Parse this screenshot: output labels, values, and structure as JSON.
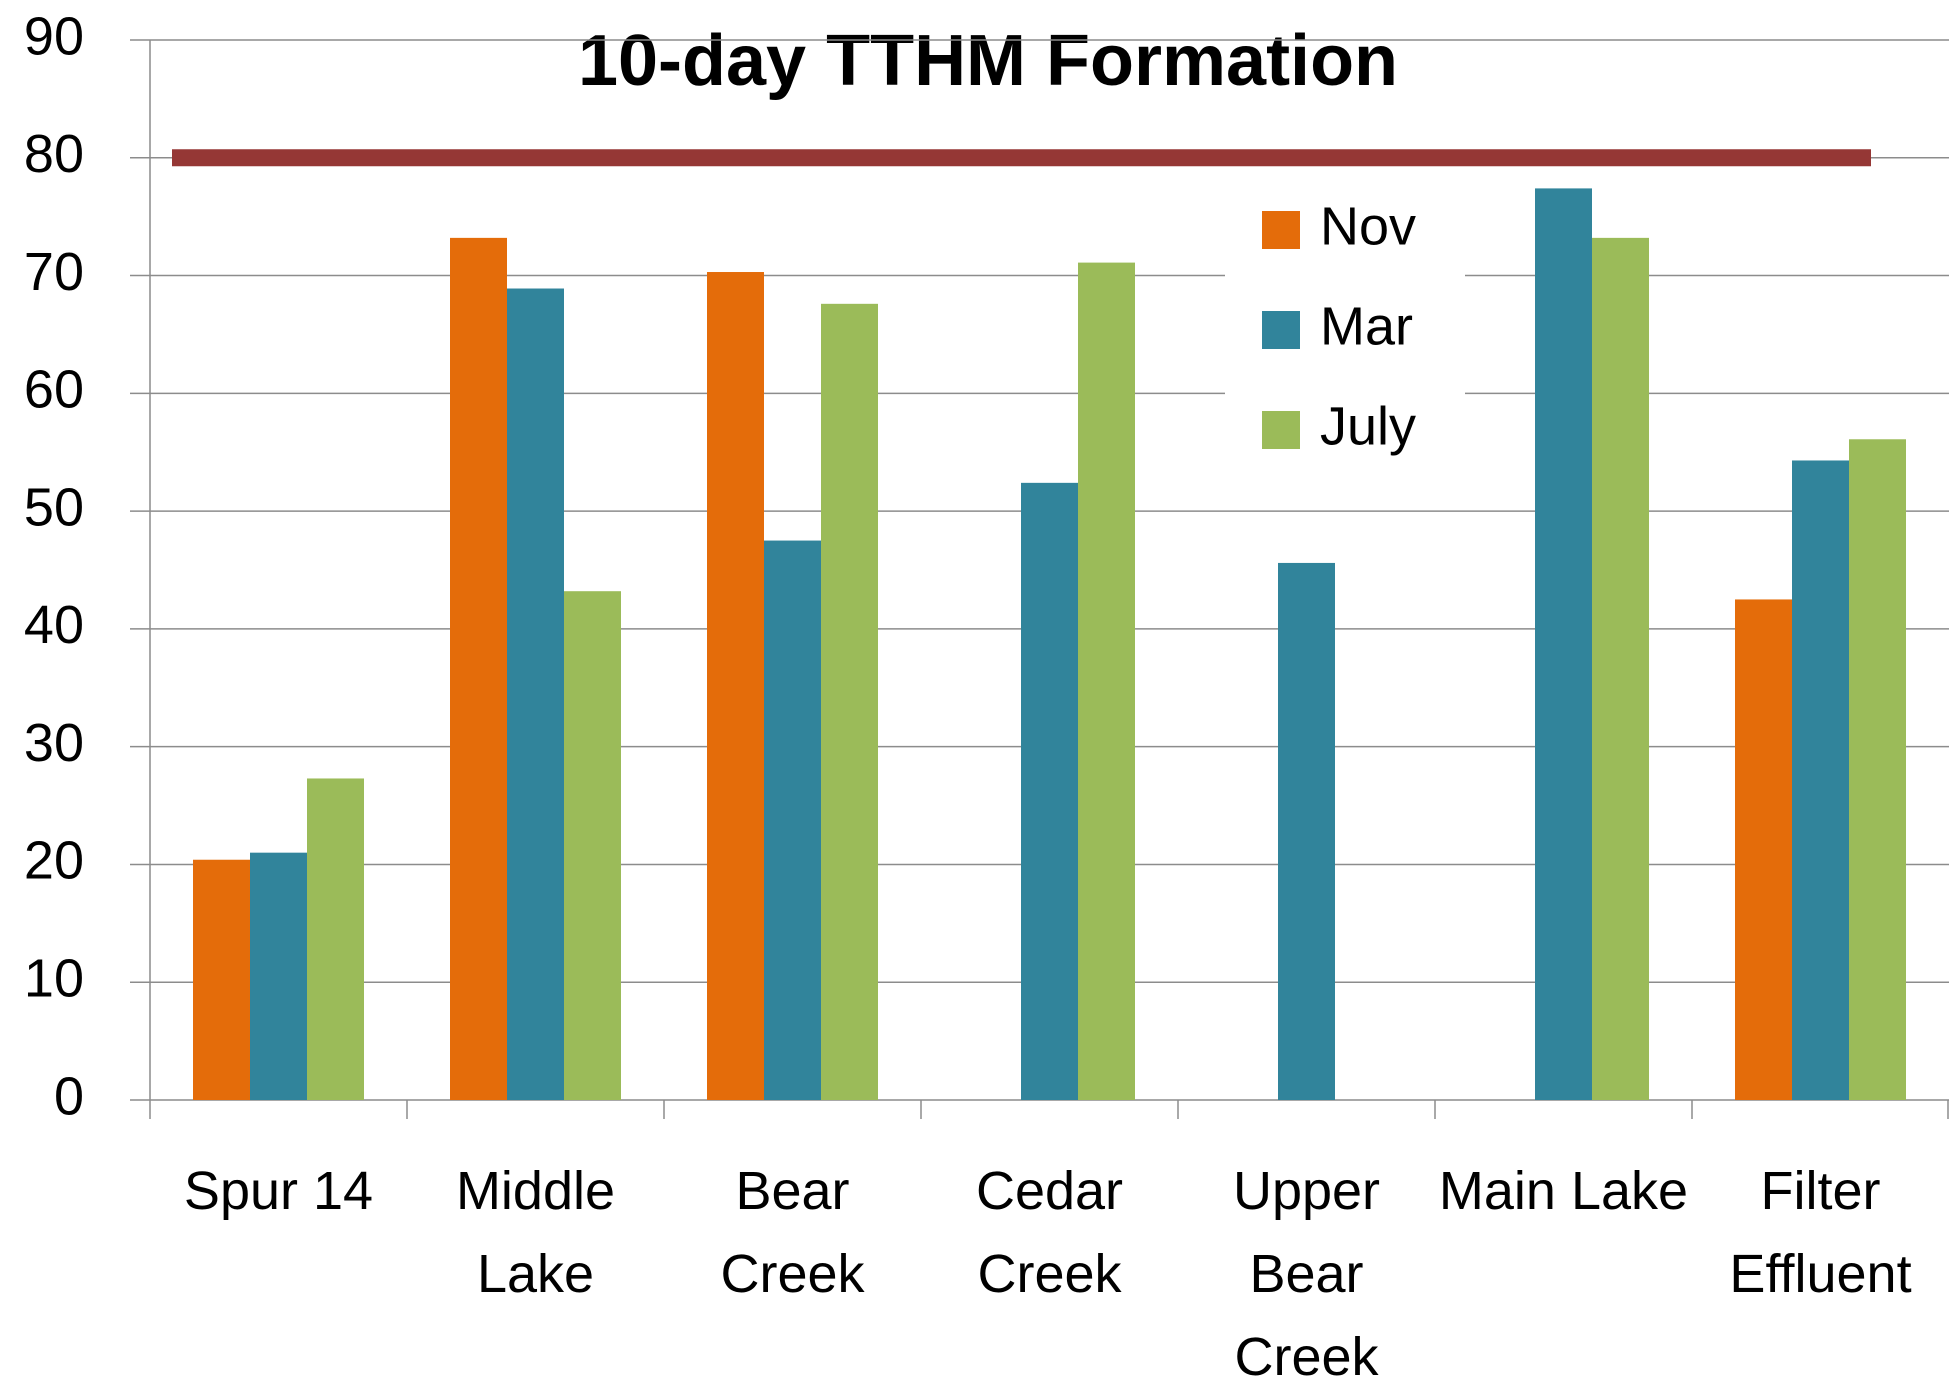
{
  "chart_data": {
    "type": "bar",
    "title": "10-day TTHM Formation",
    "categories": [
      "Spur 14",
      "Middle Lake",
      "Bear Creek",
      "Cedar Creek",
      "Upper Bear Creek",
      "Main Lake",
      "Filter Effluent"
    ],
    "series": [
      {
        "name": "Nov",
        "color": "#e46c0a",
        "values": [
          20.4,
          73.2,
          70.3,
          null,
          null,
          null,
          42.5
        ]
      },
      {
        "name": "Mar",
        "color": "#31849b",
        "values": [
          21.0,
          68.9,
          47.5,
          52.4,
          45.6,
          77.4,
          54.3
        ]
      },
      {
        "name": "July",
        "color": "#9bbb59",
        "values": [
          27.3,
          43.2,
          67.6,
          71.1,
          null,
          73.2,
          56.1
        ]
      }
    ],
    "reference_line": {
      "value": 80,
      "color": "#953735"
    },
    "ylim": [
      0,
      90
    ],
    "yticks": [
      0,
      10,
      20,
      30,
      40,
      50,
      60,
      70,
      80,
      90
    ],
    "grid": true,
    "legend": "upper right"
  }
}
